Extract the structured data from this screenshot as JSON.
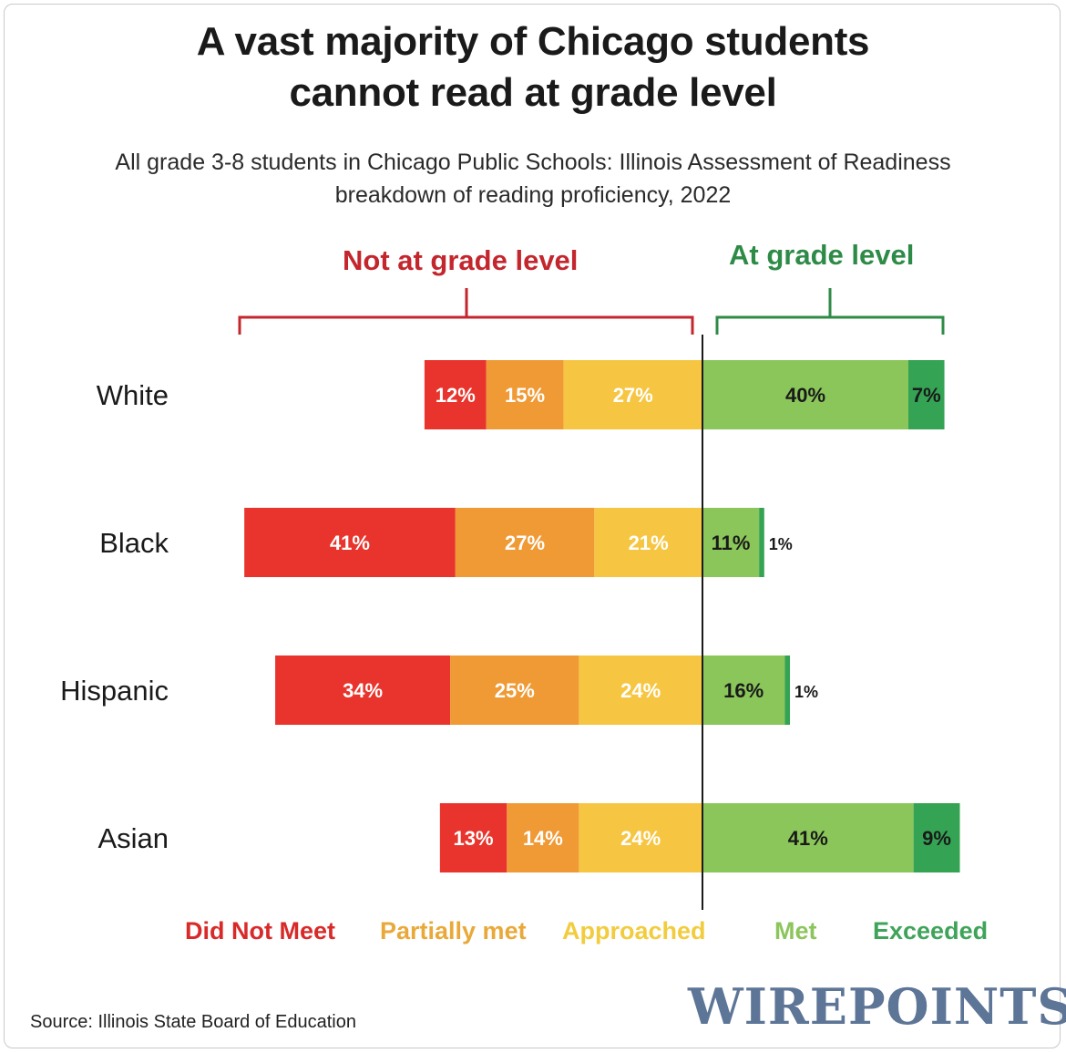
{
  "title": "A vast majority of Chicago students cannot read at grade level",
  "subtitle": "All grade 3-8 students in Chicago Public Schools: Illinois Assessment of Readiness breakdown of reading proficiency, 2022",
  "groups": {
    "not_at_grade": "Not at grade level",
    "at_grade": "At grade level",
    "not_color": "#c4262e",
    "at_color": "#2e8b47"
  },
  "legend": [
    {
      "label": "Did Not Meet",
      "color": "#d92a2a"
    },
    {
      "label": "Partially met",
      "color": "#e9a93a"
    },
    {
      "label": "Approached",
      "color": "#f2cc3e"
    },
    {
      "label": "Met",
      "color": "#8cc55c"
    },
    {
      "label": "Exceeded",
      "color": "#3fa45a"
    }
  ],
  "source": "Source: Illinois State Board of Education",
  "logo": "WIREPOINTS",
  "chart_data": {
    "type": "bar",
    "orientation": "horizontal-diverging-stacked",
    "categories": [
      "White",
      "Black",
      "Hispanic",
      "Asian"
    ],
    "series": [
      {
        "name": "Did Not Meet",
        "color": "#e8342c",
        "side": "not",
        "values": [
          12,
          41,
          34,
          13
        ],
        "labels": [
          "12%",
          "41%",
          "34%",
          "13%"
        ]
      },
      {
        "name": "Partially met",
        "color": "#ef9a35",
        "side": "not",
        "values": [
          15,
          27,
          25,
          14
        ],
        "labels": [
          "15%",
          "27%",
          "25%",
          "14%"
        ]
      },
      {
        "name": "Approached",
        "color": "#f6c643",
        "side": "not",
        "values": [
          27,
          21,
          24,
          24
        ],
        "labels": [
          "27%",
          "21%",
          "24%",
          "24%"
        ]
      },
      {
        "name": "Met",
        "color": "#8ac65a",
        "side": "at",
        "values": [
          40,
          11,
          16,
          41
        ],
        "labels": [
          "40%",
          "11%",
          "16%",
          "41%"
        ]
      },
      {
        "name": "Exceeded",
        "color": "#34a354",
        "side": "at",
        "values": [
          7,
          1,
          1,
          9
        ],
        "labels": [
          "7%",
          "1%",
          "1%",
          "9%"
        ]
      }
    ]
  }
}
